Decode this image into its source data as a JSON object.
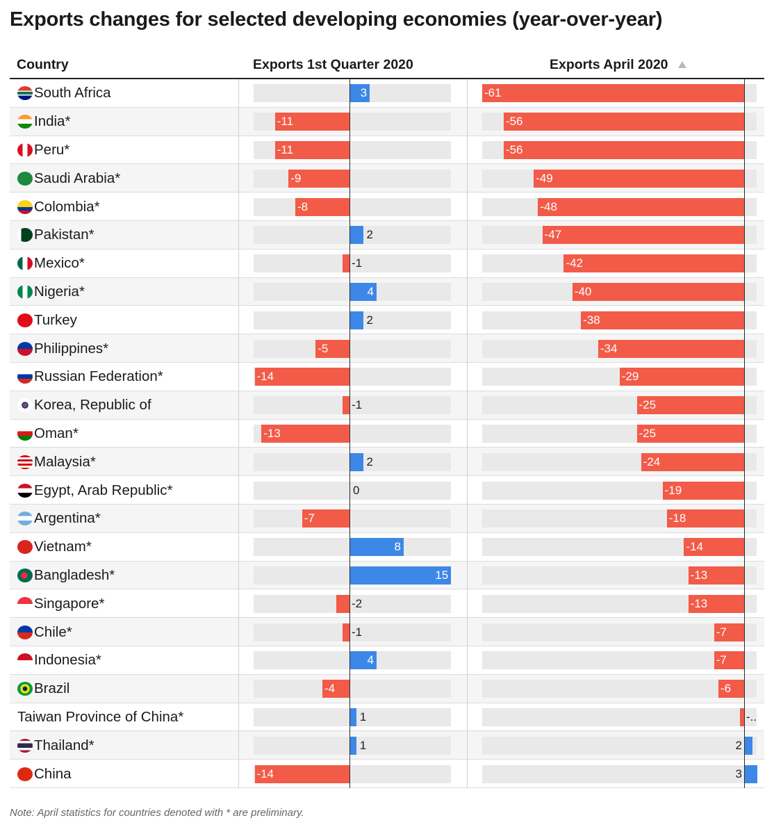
{
  "title": "Exports changes for selected developing economies (year-over-year)",
  "note": "Note: April statistics for countries denoted with * are preliminary.",
  "colors": {
    "negative": "#f25b48",
    "positive": "#3d87e6",
    "track": "#e9e9e9"
  },
  "chart_data": {
    "type": "table",
    "columns": [
      "Country",
      "Exports 1st Quarter 2020",
      "Exports April 2020"
    ],
    "sort": {
      "column": "Exports April 2020",
      "icon": "sort-ascending-icon"
    },
    "q1_range": [
      -14,
      15
    ],
    "apr_range": [
      -61,
      3
    ],
    "rows": [
      {
        "country": "South Africa",
        "flag": "za",
        "q1": 3,
        "apr": -61
      },
      {
        "country": "India*",
        "flag": "in",
        "q1": -11,
        "apr": -56
      },
      {
        "country": "Peru*",
        "flag": "pe",
        "q1": -11,
        "apr": -56
      },
      {
        "country": "Saudi Arabia*",
        "flag": "sa",
        "q1": -9,
        "apr": -49
      },
      {
        "country": "Colombia*",
        "flag": "co",
        "q1": -8,
        "apr": -48
      },
      {
        "country": "Pakistan*",
        "flag": "pk",
        "q1": 2,
        "apr": -47
      },
      {
        "country": "Mexico*",
        "flag": "mx",
        "q1": -1,
        "apr": -42
      },
      {
        "country": "Nigeria*",
        "flag": "ng",
        "q1": 4,
        "apr": -40
      },
      {
        "country": "Turkey",
        "flag": "tr",
        "q1": 2,
        "apr": -38
      },
      {
        "country": "Philippines*",
        "flag": "ph",
        "q1": -5,
        "apr": -34
      },
      {
        "country": "Russian Federation*",
        "flag": "ru",
        "q1": -14,
        "apr": -29
      },
      {
        "country": "Korea, Republic of",
        "flag": "kr",
        "q1": -1,
        "apr": -25
      },
      {
        "country": "Oman*",
        "flag": "om",
        "q1": -13,
        "apr": -25
      },
      {
        "country": "Malaysia*",
        "flag": "my",
        "q1": 2,
        "apr": -24
      },
      {
        "country": "Egypt, Arab Republic*",
        "flag": "eg",
        "q1": 0,
        "apr": -19
      },
      {
        "country": "Argentina*",
        "flag": "ar",
        "q1": -7,
        "apr": -18
      },
      {
        "country": "Vietnam*",
        "flag": "vn",
        "q1": 8,
        "apr": -14
      },
      {
        "country": "Bangladesh*",
        "flag": "bd",
        "q1": 15,
        "apr": -13
      },
      {
        "country": "Singapore*",
        "flag": "sg",
        "q1": -2,
        "apr": -13
      },
      {
        "country": "Chile*",
        "flag": "cl",
        "q1": -1,
        "apr": -7
      },
      {
        "country": "Indonesia*",
        "flag": "id",
        "q1": 4,
        "apr": -7
      },
      {
        "country": "Brazil",
        "flag": "br",
        "q1": -4,
        "apr": -6
      },
      {
        "country": "Taiwan Province of China*",
        "flag": "",
        "q1": 1,
        "apr": -1,
        "apr_label": "-.."
      },
      {
        "country": "Thailand*",
        "flag": "th",
        "q1": 1,
        "apr": 2
      },
      {
        "country": "China",
        "flag": "cn",
        "q1": -14,
        "apr": 3
      }
    ]
  }
}
